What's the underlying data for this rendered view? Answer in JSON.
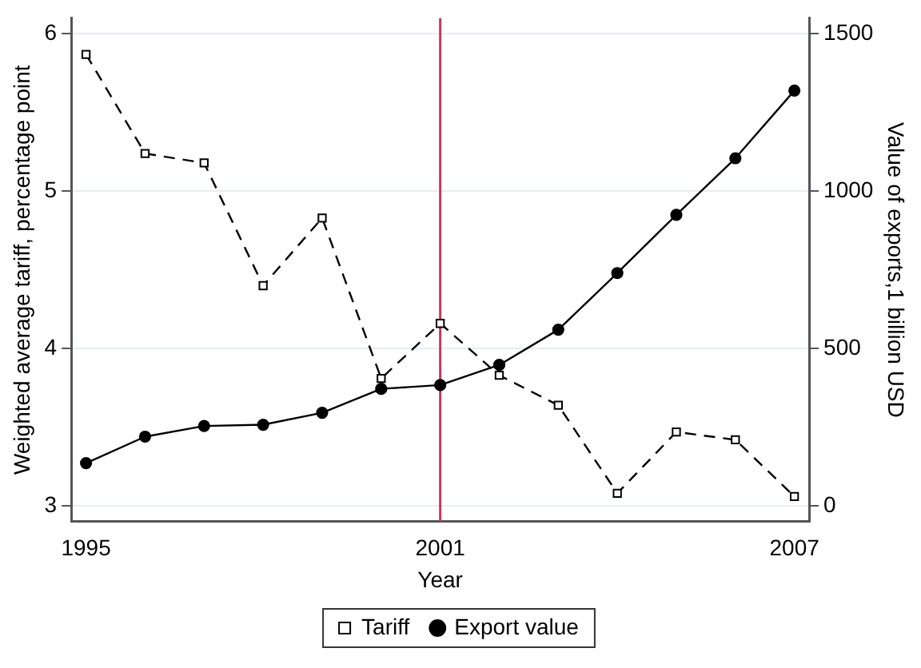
{
  "chart_data": {
    "type": "line",
    "xlabel": "Year",
    "ylabel": "Weighted average tariff, percentage point",
    "y2label": "Value of exports,1 billion USD",
    "x": [
      1995,
      1996,
      1997,
      1998,
      1999,
      2000,
      2001,
      2002,
      2003,
      2004,
      2005,
      2006,
      2007
    ],
    "series": [
      {
        "name": "Tariff",
        "color": "#000000",
        "marker": "square",
        "line_style": "dashed",
        "values": [
          5.87,
          5.24,
          5.18,
          4.4,
          4.83,
          3.81,
          4.16,
          3.83,
          3.64,
          3.08,
          3.47,
          3.42,
          3.06
        ]
      },
      {
        "name": "Export value",
        "color": "#000000",
        "marker": "circle",
        "line_style": "solid",
        "axis": "y2",
        "values": [
          136,
          220,
          254,
          258,
          296,
          372,
          384,
          448,
          560,
          740,
          925,
          1105,
          1320
        ]
      }
    ],
    "xlim": [
      1994.75,
      2007.25
    ],
    "xticks": [
      1995,
      2001,
      2007
    ],
    "ylim": [
      2.9,
      6.1
    ],
    "yticks": [
      3,
      4,
      5,
      6
    ],
    "y2lim": [
      -50,
      1550
    ],
    "y2ticks": [
      0,
      500,
      1000,
      1500
    ],
    "ref_lines": [
      {
        "axis": "x",
        "value": 2001,
        "color": "#c8385a"
      }
    ],
    "grid": "y",
    "legend": "bottom"
  }
}
